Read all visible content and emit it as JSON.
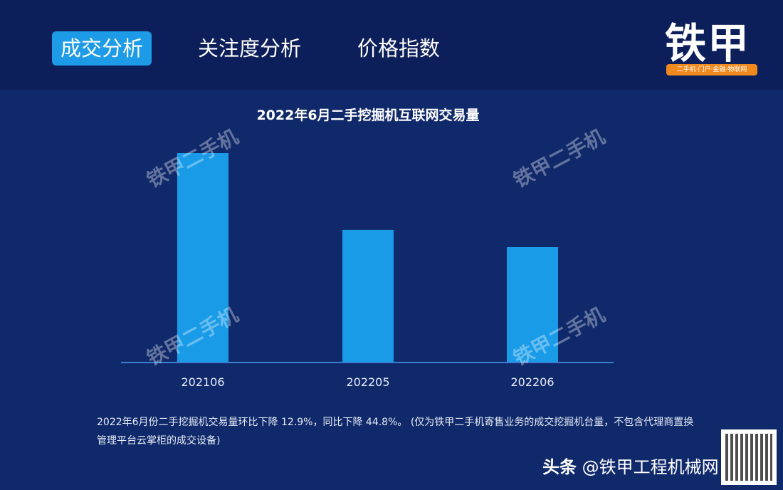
{
  "tabs": [
    {
      "label": "成交分析",
      "active": true
    },
    {
      "label": "关注度分析",
      "active": false
    },
    {
      "label": "价格指数",
      "active": false
    }
  ],
  "logo": {
    "text": "铁甲",
    "tagline": "二手机·门户·金融·物联网"
  },
  "chart_data": {
    "type": "bar",
    "title": "2022年6月二手挖掘机互联网交易量",
    "categories": [
      "202106",
      "202205",
      "202206"
    ],
    "values": [
      100,
      63.3,
      55.1
    ],
    "value_note": "relative index, 202106 = 100 (no axis shown)",
    "xlabel": "",
    "ylabel": "",
    "ylim": [
      0,
      110
    ],
    "grid": false,
    "bar_color": "#1a9be8",
    "watermark": "铁甲二手机"
  },
  "note": "2022年6月份二手挖掘机交易量环比下降 12.9%，同比下降 44.8%。 (仅为铁甲二手机寄售业务的成交挖掘机台量，不包含代理商置换管理平台云掌柜的成交设备)",
  "footer": {
    "prefix": "头条",
    "handle": "@铁甲工程机械网"
  },
  "colors": {
    "bg": "#10296a",
    "header": "#0c1f5a",
    "accent": "#1d9be6",
    "logo_orange": "#f08a1e"
  }
}
